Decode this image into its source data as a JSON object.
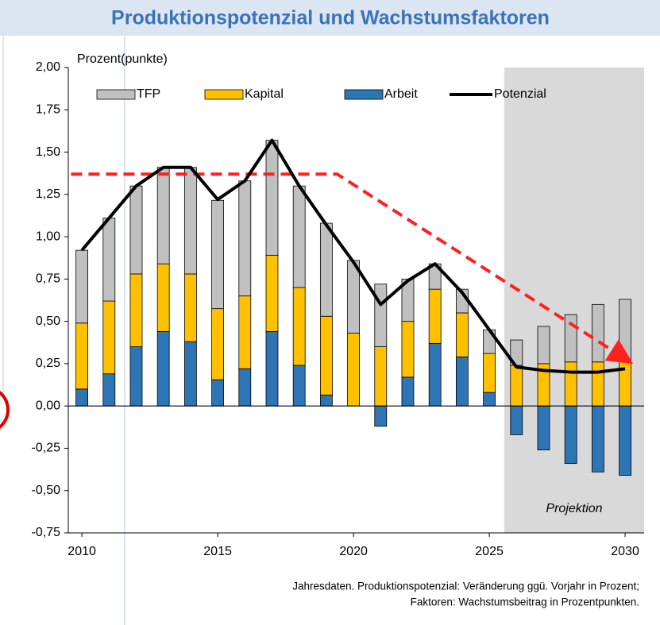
{
  "chart_data": {
    "type": "bar",
    "title": "Produktionspotenzial und Wachstumsfaktoren",
    "y_label": "Prozent(punkte)",
    "annotation": "Projektion",
    "footnote": [
      "Jahresdaten. Produktionspotenzial: Veränderung ggü. Vorjahr in Prozent;",
      "Faktoren: Wachstumsbeitrag in Prozentpunkten."
    ],
    "x": [
      2010,
      2011,
      2012,
      2013,
      2014,
      2015,
      2016,
      2017,
      2018,
      2019,
      2020,
      2021,
      2022,
      2023,
      2024,
      2025,
      2026,
      2027,
      2028,
      2029,
      2030
    ],
    "series": [
      {
        "name": "TFP",
        "type": "bar",
        "color": "#c0c0c0",
        "values": [
          0.43,
          0.49,
          0.52,
          0.57,
          0.63,
          0.64,
          0.68,
          0.68,
          0.6,
          0.55,
          0.43,
          0.37,
          0.25,
          0.15,
          0.14,
          0.14,
          0.15,
          0.22,
          0.28,
          0.34,
          0.36
        ]
      },
      {
        "name": "Kapital",
        "type": "bar",
        "color": "#ffc000",
        "values": [
          0.39,
          0.43,
          0.43,
          0.4,
          0.4,
          0.42,
          0.43,
          0.45,
          0.46,
          0.465,
          0.43,
          0.35,
          0.33,
          0.32,
          0.26,
          0.23,
          0.24,
          0.25,
          0.26,
          0.26,
          0.27
        ]
      },
      {
        "name": "Arbeit",
        "type": "bar",
        "color": "#2e75b6",
        "values": [
          0.1,
          0.19,
          0.35,
          0.44,
          0.38,
          0.155,
          0.22,
          0.44,
          0.24,
          0.065,
          0,
          -0.12,
          0.17,
          0.37,
          0.29,
          0.08,
          -0.17,
          -0.26,
          -0.34,
          -0.39,
          -0.41
        ]
      },
      {
        "name": "Potenzial",
        "type": "line",
        "color": "#000000",
        "values": [
          0.92,
          1.11,
          1.3,
          1.41,
          1.41,
          1.22,
          1.33,
          1.57,
          1.3,
          1.07,
          0.85,
          0.6,
          0.74,
          0.84,
          0.67,
          0.45,
          0.23,
          0.21,
          0.2,
          0.2,
          0.22
        ]
      }
    ],
    "trend": {
      "color": "#ff2020",
      "x": [
        2009.6,
        2019.4,
        2030
      ],
      "values": [
        1.37,
        1.37,
        0.28
      ]
    },
    "projection_start": 2025.55,
    "xlim": [
      2009.5,
      2030.7
    ],
    "xticks": [
      2010,
      2015,
      2020,
      2025,
      2030
    ],
    "ylim": [
      -0.75,
      2
    ],
    "yticks": [
      {
        "value": -0.75,
        "label": "-0,75"
      },
      {
        "value": -0.5,
        "label": "-0,50"
      },
      {
        "value": -0.25,
        "label": "-0,25"
      },
      {
        "value": 0,
        "label": "0,00"
      },
      {
        "value": 0.25,
        "label": "0,25"
      },
      {
        "value": 0.5,
        "label": "0,50"
      },
      {
        "value": 0.75,
        "label": "0,75"
      },
      {
        "value": 1,
        "label": "1,00"
      },
      {
        "value": 1.25,
        "label": "1,25"
      },
      {
        "value": 1.5,
        "label": "1,50"
      },
      {
        "value": 1.75,
        "label": "1,75"
      },
      {
        "value": 2,
        "label": "2,00"
      }
    ]
  }
}
